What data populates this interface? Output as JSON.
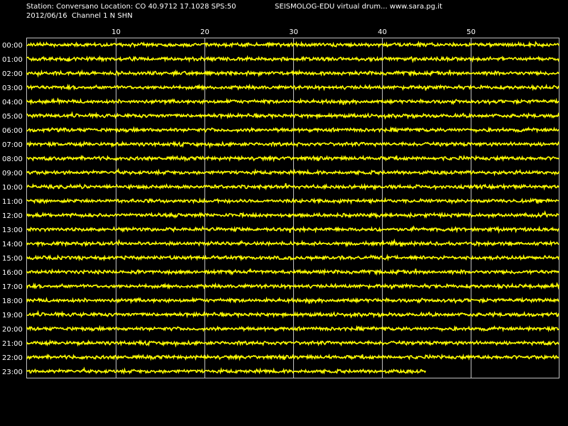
{
  "header": {
    "station_line": "Station: Conversano Location: CO 40.9712 17.1028 SPS:50",
    "drum_title": "SEISMOLOG-EDU virtual drum... www.sara.pg.it",
    "date_channel_line": "2012/06/16  Channel 1 N SHN"
  },
  "colors": {
    "background": "#000000",
    "trace": "#ffff00",
    "grid": "#c0c0c0",
    "text": "#ffffff"
  },
  "chart_data": {
    "type": "line",
    "title": "",
    "xlabel": "",
    "ylabel": "",
    "x_ticks": [
      10,
      20,
      30,
      40,
      50
    ],
    "xlim": [
      0,
      60
    ],
    "grid": true,
    "series": [
      {
        "label": "00:00",
        "end_minute": 60
      },
      {
        "label": "01:00",
        "end_minute": 60
      },
      {
        "label": "02:00",
        "end_minute": 60
      },
      {
        "label": "03:00",
        "end_minute": 60
      },
      {
        "label": "04:00",
        "end_minute": 60
      },
      {
        "label": "05:00",
        "end_minute": 60
      },
      {
        "label": "06:00",
        "end_minute": 60
      },
      {
        "label": "07:00",
        "end_minute": 60
      },
      {
        "label": "08:00",
        "end_minute": 60
      },
      {
        "label": "09:00",
        "end_minute": 60
      },
      {
        "label": "10:00",
        "end_minute": 60
      },
      {
        "label": "11:00",
        "end_minute": 60
      },
      {
        "label": "12:00",
        "end_minute": 60
      },
      {
        "label": "13:00",
        "end_minute": 60
      },
      {
        "label": "14:00",
        "end_minute": 60
      },
      {
        "label": "15:00",
        "end_minute": 60
      },
      {
        "label": "16:00",
        "end_minute": 60
      },
      {
        "label": "17:00",
        "end_minute": 60
      },
      {
        "label": "18:00",
        "end_minute": 60
      },
      {
        "label": "19:00",
        "end_minute": 60
      },
      {
        "label": "20:00",
        "end_minute": 60
      },
      {
        "label": "21:00",
        "end_minute": 60
      },
      {
        "label": "22:00",
        "end_minute": 60
      },
      {
        "label": "23:00",
        "end_minute": 45
      }
    ]
  }
}
